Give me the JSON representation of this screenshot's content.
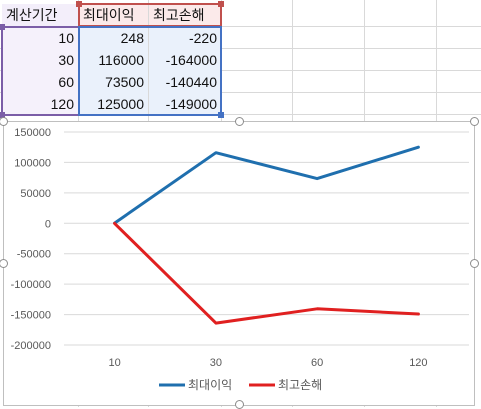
{
  "table": {
    "headers": [
      "계산기간",
      "최대이익",
      "최고손해"
    ],
    "rows": [
      [
        "10",
        "248",
        "-220"
      ],
      [
        "30",
        "116000",
        "-164000"
      ],
      [
        "60",
        "73500",
        "-140440"
      ],
      [
        "120",
        "125000",
        "-149000"
      ]
    ]
  },
  "colors": {
    "series_1": "#1f6fae",
    "series_2": "#e02020",
    "range_purple": "#7b5ea7",
    "range_red": "#c0504d",
    "range_blue": "#4472c4"
  },
  "chart_data": {
    "type": "line",
    "categories": [
      "10",
      "30",
      "60",
      "120"
    ],
    "series": [
      {
        "name": "최대이익",
        "values": [
          248,
          116000,
          73500,
          125000
        ]
      },
      {
        "name": "최고손해",
        "values": [
          -220,
          -164000,
          -140440,
          -149000
        ]
      }
    ],
    "ylim": [
      -200000,
      150000
    ],
    "y_ticks": [
      "150000",
      "100000",
      "50000",
      "0",
      "-50000",
      "-100000",
      "-150000",
      "-200000"
    ],
    "grid": true,
    "legend_position": "bottom"
  }
}
